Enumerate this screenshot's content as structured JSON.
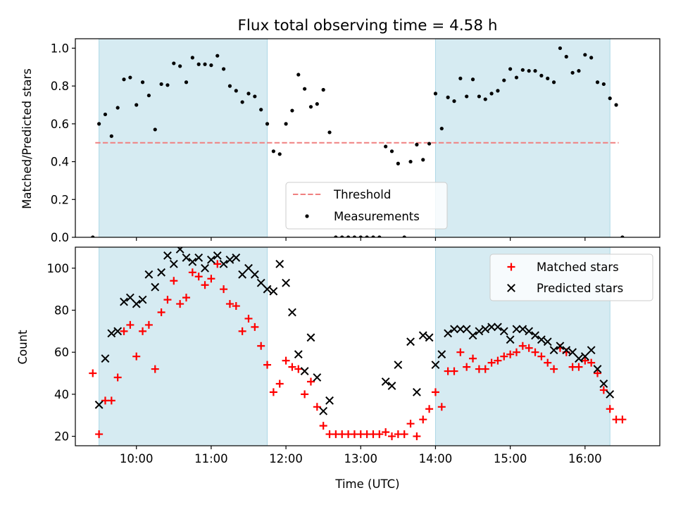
{
  "figure": {
    "title": "Flux total observing time = 4.58 h",
    "xlabel": "Time (UTC)",
    "xticks": [
      "10:00",
      "11:00",
      "12:00",
      "13:00",
      "14:00",
      "15:00",
      "16:00"
    ],
    "shaded_color": "#add8e6"
  },
  "chart_data": [
    {
      "type": "scatter",
      "panel": "top",
      "xlabel": "",
      "ylabel": "Matched/Predicted stars",
      "xlim": [
        "09:11",
        "17:00"
      ],
      "ylim": [
        0,
        1.05
      ],
      "yticks": [
        "0.0",
        "0.2",
        "0.4",
        "0.6",
        "0.8",
        "1.0"
      ],
      "shaded_intervals": [
        [
          "09:30",
          "11:45"
        ],
        [
          "14:00",
          "16:20"
        ]
      ],
      "threshold": 0.5,
      "threshold_range": [
        "09:27",
        "16:27"
      ],
      "legend": {
        "position": "bottom-center",
        "entries": [
          "Threshold",
          "Measurements"
        ]
      },
      "series": [
        {
          "name": "Threshold",
          "style": "dashed-line",
          "color": "#f08080",
          "points": [
            [
              "09:27",
              0.5
            ],
            [
              "16:27",
              0.5
            ]
          ]
        },
        {
          "name": "Measurements",
          "style": "dot",
          "color": "#000000",
          "points": [
            [
              "09:25",
              0.0
            ],
            [
              "09:30",
              0.6
            ],
            [
              "09:35",
              0.65
            ],
            [
              "09:40",
              0.535
            ],
            [
              "09:45",
              0.685
            ],
            [
              "09:50",
              0.835
            ],
            [
              "09:55",
              0.845
            ],
            [
              "10:00",
              0.7
            ],
            [
              "10:05",
              0.82
            ],
            [
              "10:10",
              0.75
            ],
            [
              "10:15",
              0.57
            ],
            [
              "10:20",
              0.81
            ],
            [
              "10:25",
              0.805
            ],
            [
              "10:30",
              0.92
            ],
            [
              "10:35",
              0.905
            ],
            [
              "10:40",
              0.82
            ],
            [
              "10:45",
              0.95
            ],
            [
              "10:50",
              0.915
            ],
            [
              "10:55",
              0.915
            ],
            [
              "11:00",
              0.91
            ],
            [
              "11:05",
              0.96
            ],
            [
              "11:10",
              0.89
            ],
            [
              "11:15",
              0.8
            ],
            [
              "11:20",
              0.775
            ],
            [
              "11:25",
              0.715
            ],
            [
              "11:30",
              0.76
            ],
            [
              "11:35",
              0.745
            ],
            [
              "11:40",
              0.675
            ],
            [
              "11:45",
              0.6
            ],
            [
              "11:50",
              0.455
            ],
            [
              "11:55",
              0.44
            ],
            [
              "12:00",
              0.6
            ],
            [
              "12:05",
              0.67
            ],
            [
              "12:10",
              0.86
            ],
            [
              "12:15",
              0.785
            ],
            [
              "12:20",
              0.69
            ],
            [
              "12:25",
              0.705
            ],
            [
              "12:30",
              0.78
            ],
            [
              "12:35",
              0.555
            ],
            [
              "12:40",
              0.0
            ],
            [
              "12:45",
              0.0
            ],
            [
              "12:50",
              0.0
            ],
            [
              "12:55",
              0.0
            ],
            [
              "13:00",
              0.0
            ],
            [
              "13:05",
              0.0
            ],
            [
              "13:10",
              0.0
            ],
            [
              "13:15",
              0.0
            ],
            [
              "13:20",
              0.48
            ],
            [
              "13:25",
              0.455
            ],
            [
              "13:30",
              0.39
            ],
            [
              "13:35",
              0.0
            ],
            [
              "13:40",
              0.4
            ],
            [
              "13:45",
              0.49
            ],
            [
              "13:50",
              0.41
            ],
            [
              "13:55",
              0.495
            ],
            [
              "14:00",
              0.76
            ],
            [
              "14:05",
              0.575
            ],
            [
              "14:10",
              0.74
            ],
            [
              "14:15",
              0.72
            ],
            [
              "14:20",
              0.84
            ],
            [
              "14:25",
              0.745
            ],
            [
              "14:30",
              0.835
            ],
            [
              "14:35",
              0.745
            ],
            [
              "14:40",
              0.73
            ],
            [
              "14:45",
              0.76
            ],
            [
              "14:50",
              0.775
            ],
            [
              "14:55",
              0.83
            ],
            [
              "15:00",
              0.89
            ],
            [
              "15:05",
              0.845
            ],
            [
              "15:10",
              0.885
            ],
            [
              "15:15",
              0.88
            ],
            [
              "15:20",
              0.88
            ],
            [
              "15:25",
              0.855
            ],
            [
              "15:30",
              0.84
            ],
            [
              "15:35",
              0.82
            ],
            [
              "15:40",
              1.0
            ],
            [
              "15:45",
              0.955
            ],
            [
              "15:50",
              0.87
            ],
            [
              "15:55",
              0.88
            ],
            [
              "16:00",
              0.965
            ],
            [
              "16:05",
              0.95
            ],
            [
              "16:10",
              0.82
            ],
            [
              "16:15",
              0.81
            ],
            [
              "16:20",
              0.735
            ],
            [
              "16:25",
              0.7
            ],
            [
              "16:30",
              0.0
            ]
          ]
        }
      ]
    },
    {
      "type": "scatter",
      "panel": "bottom",
      "xlabel": "Time (UTC)",
      "ylabel": "Count",
      "xlim": [
        "09:11",
        "17:00"
      ],
      "ylim": [
        15.5,
        110
      ],
      "yticks": [
        "20",
        "40",
        "60",
        "80",
        "100"
      ],
      "shaded_intervals": [
        [
          "09:30",
          "11:45"
        ],
        [
          "14:00",
          "16:20"
        ]
      ],
      "legend": {
        "position": "top-right",
        "entries": [
          "Matched stars",
          "Predicted stars"
        ]
      },
      "series": [
        {
          "name": "Matched stars",
          "marker": "plus",
          "color": "#ff0000",
          "points": [
            [
              "09:25",
              50
            ],
            [
              "09:30",
              21
            ],
            [
              "09:35",
              37
            ],
            [
              "09:40",
              37
            ],
            [
              "09:45",
              48
            ],
            [
              "09:50",
              70
            ],
            [
              "09:55",
              73
            ],
            [
              "10:00",
              58
            ],
            [
              "10:05",
              70
            ],
            [
              "10:10",
              73
            ],
            [
              "10:15",
              52
            ],
            [
              "10:20",
              79
            ],
            [
              "10:25",
              85
            ],
            [
              "10:30",
              94
            ],
            [
              "10:35",
              83
            ],
            [
              "10:40",
              86
            ],
            [
              "10:45",
              98
            ],
            [
              "10:50",
              96
            ],
            [
              "10:55",
              92
            ],
            [
              "11:00",
              95
            ],
            [
              "11:05",
              102
            ],
            [
              "11:10",
              90
            ],
            [
              "11:15",
              83
            ],
            [
              "11:20",
              82
            ],
            [
              "11:25",
              70
            ],
            [
              "11:30",
              76
            ],
            [
              "11:35",
              72
            ],
            [
              "11:40",
              63
            ],
            [
              "11:45",
              54
            ],
            [
              "11:50",
              41
            ],
            [
              "11:55",
              45
            ],
            [
              "12:00",
              56
            ],
            [
              "12:05",
              53
            ],
            [
              "12:10",
              52
            ],
            [
              "12:15",
              40
            ],
            [
              "12:20",
              46
            ],
            [
              "12:25",
              34
            ],
            [
              "12:30",
              25
            ],
            [
              "12:35",
              21
            ],
            [
              "12:40",
              21
            ],
            [
              "12:45",
              21
            ],
            [
              "12:50",
              21
            ],
            [
              "12:55",
              21
            ],
            [
              "13:00",
              21
            ],
            [
              "13:05",
              21
            ],
            [
              "13:10",
              21
            ],
            [
              "13:15",
              21
            ],
            [
              "13:20",
              22
            ],
            [
              "13:25",
              20
            ],
            [
              "13:30",
              21
            ],
            [
              "13:35",
              21
            ],
            [
              "13:40",
              26
            ],
            [
              "13:45",
              20
            ],
            [
              "13:50",
              28
            ],
            [
              "13:55",
              33
            ],
            [
              "14:00",
              41
            ],
            [
              "14:05",
              34
            ],
            [
              "14:10",
              51
            ],
            [
              "14:15",
              51
            ],
            [
              "14:20",
              60
            ],
            [
              "14:25",
              53
            ],
            [
              "14:30",
              57
            ],
            [
              "14:35",
              52
            ],
            [
              "14:40",
              52
            ],
            [
              "14:45",
              55
            ],
            [
              "14:50",
              56
            ],
            [
              "14:55",
              58
            ],
            [
              "15:00",
              59
            ],
            [
              "15:05",
              60
            ],
            [
              "15:10",
              63
            ],
            [
              "15:15",
              62
            ],
            [
              "15:20",
              60
            ],
            [
              "15:25",
              58
            ],
            [
              "15:30",
              55
            ],
            [
              "15:35",
              52
            ],
            [
              "15:40",
              62
            ],
            [
              "15:45",
              60
            ],
            [
              "15:50",
              53
            ],
            [
              "15:55",
              53
            ],
            [
              "16:00",
              56
            ],
            [
              "16:05",
              55
            ],
            [
              "16:10",
              50
            ],
            [
              "16:15",
              42
            ],
            [
              "16:20",
              33
            ],
            [
              "16:25",
              28
            ],
            [
              "16:30",
              28
            ]
          ]
        },
        {
          "name": "Predicted stars",
          "marker": "x",
          "color": "#000000",
          "points": [
            [
              "09:30",
              35
            ],
            [
              "09:35",
              57
            ],
            [
              "09:40",
              69
            ],
            [
              "09:45",
              70
            ],
            [
              "09:50",
              84
            ],
            [
              "09:55",
              86
            ],
            [
              "10:00",
              83
            ],
            [
              "10:05",
              85
            ],
            [
              "10:10",
              97
            ],
            [
              "10:15",
              91
            ],
            [
              "10:20",
              98
            ],
            [
              "10:25",
              106
            ],
            [
              "10:30",
              102
            ],
            [
              "10:35",
              109
            ],
            [
              "10:40",
              105
            ],
            [
              "10:45",
              103
            ],
            [
              "10:50",
              105
            ],
            [
              "10:55",
              100
            ],
            [
              "11:00",
              104
            ],
            [
              "11:05",
              106
            ],
            [
              "11:10",
              102
            ],
            [
              "11:15",
              104
            ],
            [
              "11:20",
              105
            ],
            [
              "11:25",
              97
            ],
            [
              "11:30",
              100
            ],
            [
              "11:35",
              97
            ],
            [
              "11:40",
              93
            ],
            [
              "11:45",
              90
            ],
            [
              "11:50",
              89
            ],
            [
              "11:55",
              102
            ],
            [
              "12:00",
              93
            ],
            [
              "12:05",
              79
            ],
            [
              "12:10",
              59
            ],
            [
              "12:15",
              51
            ],
            [
              "12:20",
              67
            ],
            [
              "12:25",
              48
            ],
            [
              "12:30",
              32
            ],
            [
              "12:35",
              37
            ],
            [
              "13:20",
              46
            ],
            [
              "13:25",
              44
            ],
            [
              "13:30",
              54
            ],
            [
              "13:40",
              65
            ],
            [
              "13:45",
              41
            ],
            [
              "13:50",
              68
            ],
            [
              "13:55",
              67
            ],
            [
              "14:00",
              54
            ],
            [
              "14:05",
              59
            ],
            [
              "14:10",
              69
            ],
            [
              "14:15",
              71
            ],
            [
              "14:20",
              71
            ],
            [
              "14:25",
              71
            ],
            [
              "14:30",
              68
            ],
            [
              "14:35",
              70
            ],
            [
              "14:40",
              71
            ],
            [
              "14:45",
              72
            ],
            [
              "14:50",
              72
            ],
            [
              "14:55",
              70
            ],
            [
              "15:00",
              66
            ],
            [
              "15:05",
              71
            ],
            [
              "15:10",
              71
            ],
            [
              "15:15",
              70
            ],
            [
              "15:20",
              68
            ],
            [
              "15:25",
              66
            ],
            [
              "15:30",
              65
            ],
            [
              "15:35",
              61
            ],
            [
              "15:40",
              63
            ],
            [
              "15:45",
              61
            ],
            [
              "15:50",
              60
            ],
            [
              "15:55",
              57
            ],
            [
              "16:00",
              58
            ],
            [
              "16:05",
              61
            ],
            [
              "16:10",
              52
            ],
            [
              "16:15",
              45
            ],
            [
              "16:20",
              40
            ]
          ]
        }
      ]
    }
  ]
}
